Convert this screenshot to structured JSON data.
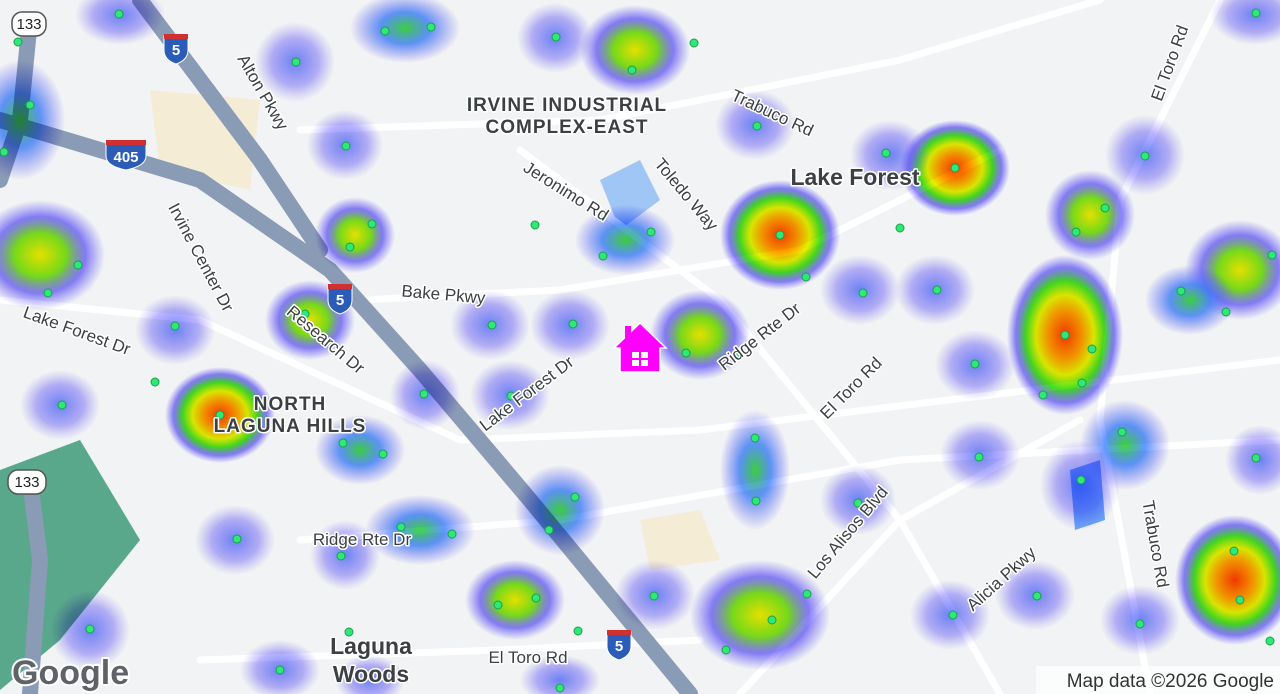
{
  "map": {
    "shields": {
      "sr133_top": "133",
      "i5_top": "5",
      "i405": "405",
      "i5_mid": "5",
      "sr133_left": "133",
      "i5_bottom": "5"
    },
    "areas": {
      "industrial": [
        "IRVINE INDUSTRIAL",
        "COMPLEX-EAST"
      ],
      "lake_forest": "Lake Forest",
      "north_laguna_hills": [
        "NORTH",
        "LAGUNA HILLS"
      ],
      "laguna_woods": [
        "Laguna",
        "Woods"
      ]
    },
    "roads": {
      "alton": "Alton Pkwy",
      "trabuco_top": "Trabuco Rd",
      "el_toro_top": "El Toro Rd",
      "jeronimo": "Jeronimo Rd",
      "toledo": "Toledo Way",
      "irvine_center": "Irvine Center Dr",
      "bake": "Bake Pkwy",
      "lake_forest_left": "Lake Forest Dr",
      "research": "Research Dr",
      "ridge_right": "Ridge Rte Dr",
      "lake_forest_mid": "Lake Forest Dr",
      "el_toro_mid": "El Toro Rd",
      "ridge_left": "Ridge Rte Dr",
      "los_alisos": "Los Alisos Blvd",
      "alicia": "Alicia Pkwy",
      "trabuco_bottom": "Trabuco Rd",
      "el_toro_bottom": "El Toro Rd"
    },
    "footer": {
      "logo": "Google",
      "attribution": "Map data ©2026 Google"
    }
  }
}
